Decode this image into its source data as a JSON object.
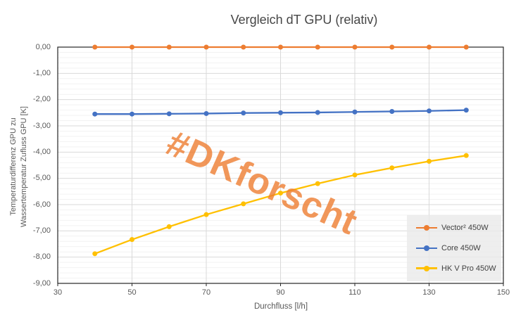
{
  "title": "Vergleich dT GPU (relativ)",
  "watermark": "#DKforscht",
  "colors": {
    "orange": "#ED7D31",
    "blue": "#4472C4",
    "yellow": "#FFC000",
    "grid_major": "#D9D9D9",
    "grid_minor": "#F2F2F2",
    "axis_line": "#262626",
    "tick_text": "#595959",
    "title_text": "#464646",
    "legend_text": "#404040"
  },
  "axes": {
    "x": {
      "title": "Durchfluss [l/h]",
      "min": 30,
      "max": 150,
      "tick_values": [
        30,
        50,
        70,
        90,
        110,
        130,
        150
      ],
      "tick_labels": [
        "30",
        "50",
        "70",
        "90",
        "110",
        "130",
        "150"
      ]
    },
    "y": {
      "title_line1": "Temperaturdifferenz GPU zu",
      "title_line2": "Wassertemperatur Zufluss GPU  [K]",
      "min": -9,
      "max": 0,
      "major_step": 1,
      "minor_step": 0.2,
      "tick_values": [
        0,
        -1,
        -2,
        -3,
        -4,
        -5,
        -6,
        -7,
        -8,
        -9
      ],
      "tick_labels": [
        "0,00",
        "-1,00",
        "-2,00",
        "-3,00",
        "-4,00",
        "-5,00",
        "-6,00",
        "-7,00",
        "-8,00",
        "-9,00"
      ]
    }
  },
  "legend": {
    "items": [
      {
        "label": "Vector² 450W",
        "color": "#ED7D31"
      },
      {
        "label": "Core 450W",
        "color": "#4472C4"
      },
      {
        "label": "HK V Pro 450W",
        "color": "#FFC000"
      }
    ]
  },
  "chart_data": {
    "type": "line",
    "title": "Vergleich dT GPU (relativ)",
    "xlabel": "Durchfluss [l/h]",
    "ylabel": "Temperaturdifferenz GPU zu Wassertemperatur Zufluss GPU [K]",
    "xlim": [
      30,
      150
    ],
    "ylim": [
      -9,
      0
    ],
    "grid": {
      "vertical_major": true,
      "horizontal_major": true,
      "horizontal_minor": true
    },
    "legend_position": "inside-bottom-right",
    "x": [
      40,
      50,
      60,
      70,
      80,
      90,
      100,
      110,
      120,
      130,
      140
    ],
    "series": [
      {
        "name": "Vector² 450W",
        "color": "#ED7D31",
        "values": [
          0,
          0,
          0,
          0,
          0,
          0,
          0,
          0,
          0,
          0,
          0
        ]
      },
      {
        "name": "Core 450W",
        "color": "#4472C4",
        "values": [
          -2.55,
          -2.55,
          -2.54,
          -2.53,
          -2.51,
          -2.5,
          -2.49,
          -2.47,
          -2.45,
          -2.43,
          -2.4
        ]
      },
      {
        "name": "HK V Pro 450W",
        "color": "#FFC000",
        "values": [
          -7.87,
          -7.33,
          -6.84,
          -6.38,
          -5.97,
          -5.56,
          -5.2,
          -4.87,
          -4.6,
          -4.35,
          -4.13
        ]
      }
    ]
  }
}
